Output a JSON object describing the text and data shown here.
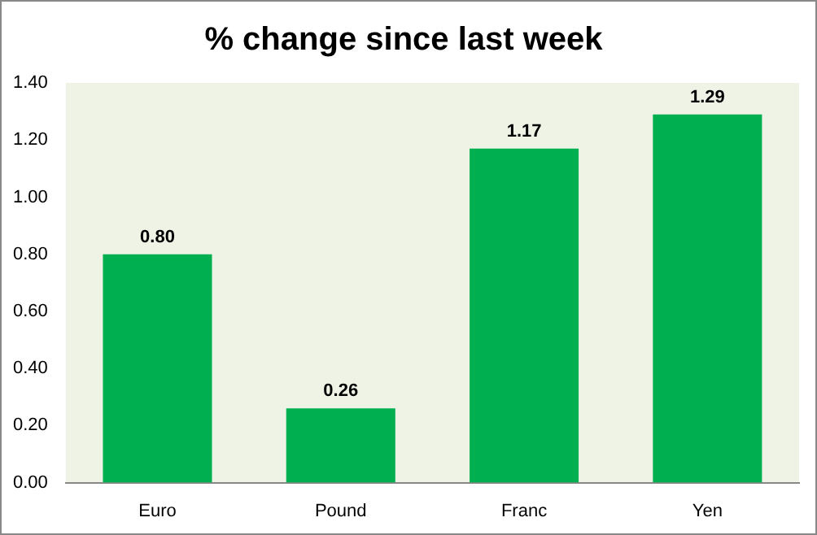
{
  "chart_data": {
    "type": "bar",
    "title": "% change since last week",
    "categories": [
      "Euro",
      "Pound",
      "Franc",
      "Yen"
    ],
    "values": [
      0.8,
      0.26,
      1.17,
      1.29
    ],
    "value_labels": [
      "0.80",
      "0.26",
      "1.17",
      "1.29"
    ],
    "color": "#00b050",
    "ylim": [
      0,
      1.4
    ],
    "yticks": [
      {
        "value": 0,
        "label": "0.00"
      },
      {
        "value": 0.2,
        "label": "0.20"
      },
      {
        "value": 0.4,
        "label": "0.40"
      },
      {
        "value": 0.6,
        "label": "0.60"
      },
      {
        "value": 0.8,
        "label": "0.80"
      },
      {
        "value": 1.0,
        "label": "1.00"
      },
      {
        "value": 1.2,
        "label": "1.20"
      },
      {
        "value": 1.4,
        "label": "1.40"
      }
    ],
    "grid": false,
    "legend": false
  }
}
